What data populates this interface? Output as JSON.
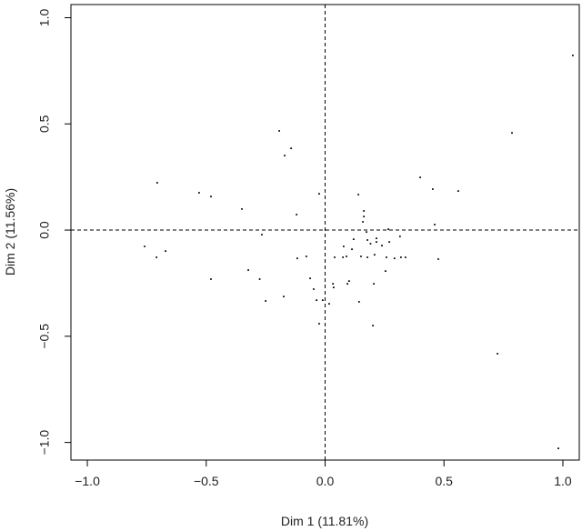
{
  "chart_data": {
    "type": "scatter",
    "color": "#000000",
    "xlabel": "Dim 1 (11.81%)",
    "ylabel": "Dim 2 (11.56%)",
    "xlim": [
      -1.069,
      1.069
    ],
    "ylim": [
      -1.083,
      1.062
    ],
    "xticks": [
      {
        "value": -1.0,
        "label": "−1.0"
      },
      {
        "value": -0.5,
        "label": "−0.5"
      },
      {
        "value": 0,
        "label": "0.0"
      },
      {
        "value": 0.5,
        "label": "0.5"
      },
      {
        "value": 1.0,
        "label": "1.0"
      }
    ],
    "yticks": [
      {
        "value": -1.0,
        "label": "−1.0"
      },
      {
        "value": -0.5,
        "label": "−0.5"
      },
      {
        "value": 0,
        "label": "0.0"
      },
      {
        "value": 0.5,
        "label": "0.5"
      },
      {
        "value": 1.0,
        "label": "1.0"
      }
    ],
    "x": [
      1.042,
      0.786,
      -0.193,
      -0.143,
      -0.17,
      -0.706,
      -0.53,
      -0.48,
      -0.35,
      -0.12,
      -0.025,
      0.4,
      0.453,
      0.56,
      0.14,
      0.163,
      0.163,
      0.159,
      0.461,
      0.266,
      -0.759,
      -0.671,
      -0.709,
      -0.266,
      -0.48,
      -0.323,
      -0.275,
      -0.25,
      -0.117,
      -0.079,
      -0.174,
      -0.063,
      -0.048,
      -0.036,
      -0.025,
      -0.01,
      0.017,
      0.033,
      0.036,
      0.04,
      0.075,
      0.078,
      0.09,
      0.094,
      0.101,
      0.113,
      0.12,
      0.143,
      0.151,
      0.174,
      0.178,
      0.178,
      0.191,
      0.205,
      0.208,
      0.216,
      0.216,
      0.239,
      0.254,
      0.258,
      0.27,
      0.292,
      0.315,
      0.319,
      0.338,
      0.476,
      0.201,
      0.725,
      0.981
    ],
    "values": [
      0.822,
      0.458,
      0.467,
      0.385,
      0.351,
      0.223,
      0.176,
      0.158,
      0.099,
      0.073,
      0.171,
      0.248,
      0.193,
      0.184,
      0.167,
      0.09,
      0.064,
      0.039,
      0.026,
      0.004,
      -0.077,
      -0.099,
      -0.128,
      -0.021,
      -0.231,
      -0.188,
      -0.231,
      -0.334,
      -0.133,
      -0.124,
      -0.313,
      -0.227,
      -0.278,
      -0.33,
      -0.441,
      -0.33,
      -0.347,
      -0.253,
      -0.27,
      -0.128,
      -0.128,
      -0.077,
      -0.124,
      -0.253,
      -0.24,
      -0.09,
      -0.043,
      -0.338,
      -0.124,
      -0.009,
      -0.047,
      -0.128,
      -0.064,
      -0.253,
      -0.116,
      -0.039,
      -0.056,
      -0.073,
      -0.193,
      -0.128,
      -0.056,
      -0.133,
      -0.03,
      -0.128,
      -0.128,
      -0.137,
      -0.45,
      -0.582,
      -1.028
    ]
  }
}
